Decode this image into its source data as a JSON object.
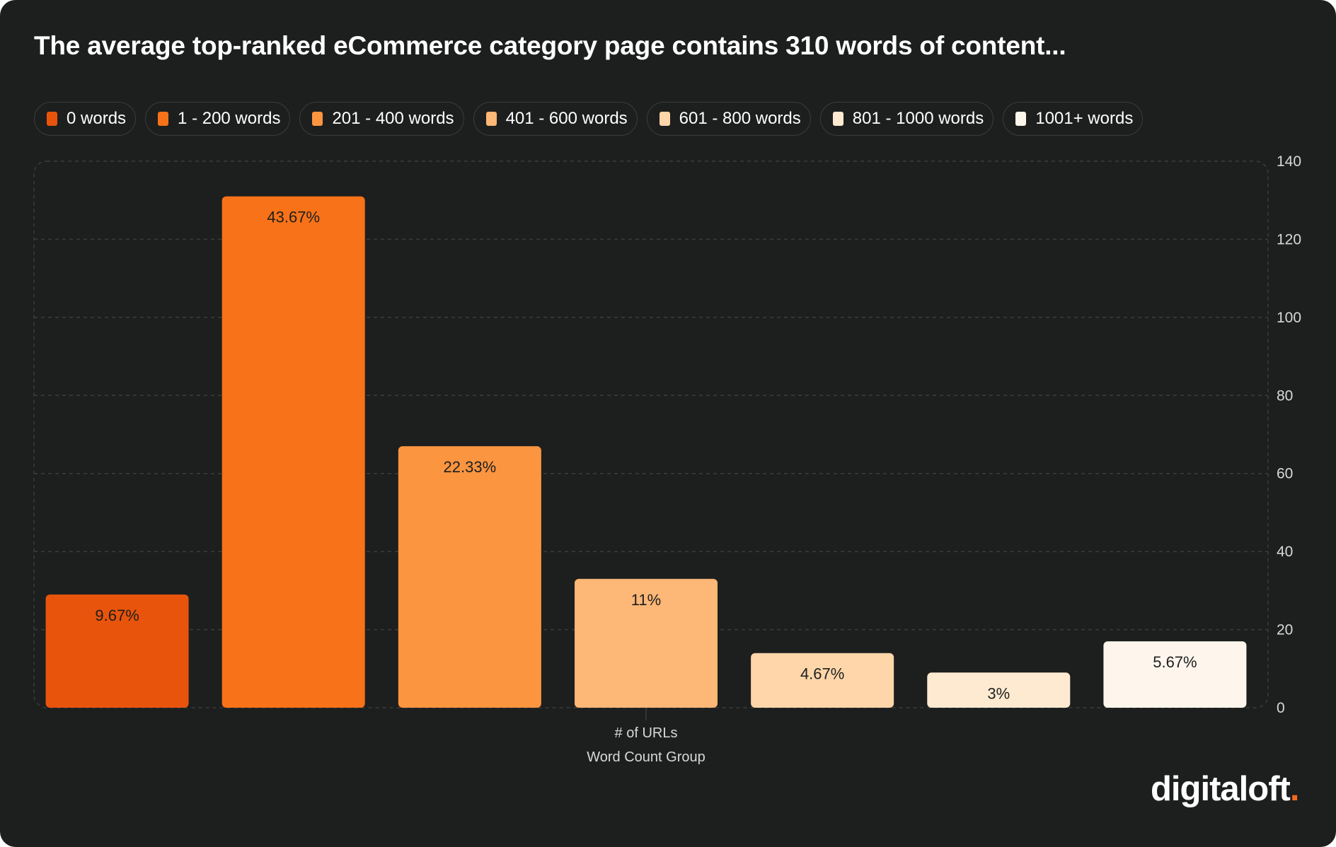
{
  "chart_data": {
    "type": "bar",
    "title": "The average top-ranked eCommerce category page contains 310 words of content...",
    "categories": [
      "0 words",
      "1 - 200 words",
      "201 - 400 words",
      "401 - 600 words",
      "601 - 800 words",
      "801 - 1000 words",
      "1001+ words"
    ],
    "values": [
      29,
      131,
      67,
      33,
      14,
      9,
      17
    ],
    "data_labels": [
      "9.67%",
      "43.67%",
      "22.33%",
      "11%",
      "4.67%",
      "3%",
      "5.67%"
    ],
    "colors": [
      "#e8540c",
      "#f77219",
      "#fb9540",
      "#fdb776",
      "#fed6a9",
      "#feead0",
      "#fef6ec"
    ],
    "y_axis": {
      "ticks": [
        "0",
        "20",
        "40",
        "60",
        "80",
        "100",
        "120",
        "140"
      ],
      "ylim": [
        0,
        140
      ],
      "position": "right"
    },
    "xlabel": "# of URLs",
    "xlabel_secondary": "Word Count Group",
    "grid": true,
    "legend": "top"
  },
  "brand": {
    "logo_text": "digitaloft",
    "logo_dot": ".",
    "accent": "#f26b1d",
    "background": "#1d1f1e"
  }
}
